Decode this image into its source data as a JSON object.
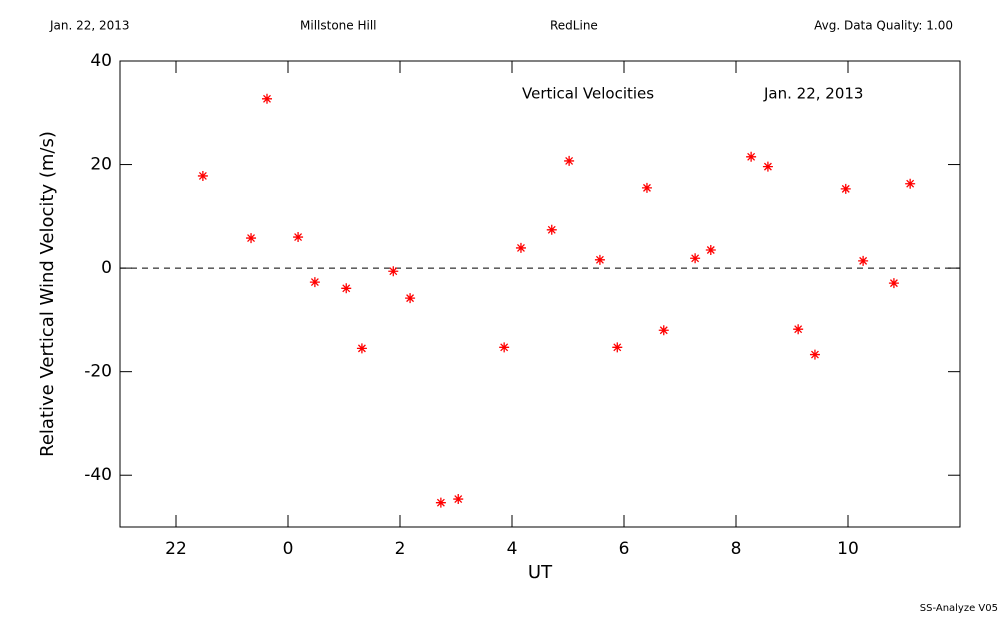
{
  "header": {
    "date": "Jan. 22, 2013",
    "site": "Millstone Hill",
    "line": "RedLine",
    "quality": "Avg. Data Quality: 1.00"
  },
  "footer": "SS-Analyze V05",
  "chart_data": {
    "type": "scatter",
    "annotations": [
      "Vertical Velocities",
      "Jan. 22, 2013"
    ],
    "xlabel": "UT",
    "ylabel": "Relative Vertical Wind Velocity (m/s)",
    "xlim": [
      -3,
      12
    ],
    "xticks": [
      {
        "value": -2,
        "label": "22"
      },
      0,
      2,
      4,
      6,
      8,
      10
    ],
    "ylim": [
      -50,
      40
    ],
    "yticks": [
      -40,
      -20,
      0,
      20,
      40
    ],
    "hline": 0,
    "color": "#ff0000",
    "x": [
      -1.52,
      -0.66,
      -0.375,
      0.18,
      0.48,
      1.04,
      1.32,
      1.88,
      2.18,
      2.73,
      3.04,
      3.86,
      4.16,
      4.71,
      5.02,
      5.57,
      5.88,
      6.41,
      6.71,
      7.27,
      7.55,
      8.27,
      8.57,
      9.11,
      9.41,
      9.96,
      10.27,
      10.82,
      11.11
    ],
    "values": [
      17.8,
      5.8,
      32.7,
      6.0,
      -2.7,
      -3.9,
      -15.5,
      -0.6,
      -5.8,
      -45.3,
      -44.6,
      -15.3,
      3.9,
      7.4,
      20.7,
      1.6,
      -15.3,
      15.5,
      -12.0,
      1.9,
      3.5,
      21.5,
      19.6,
      -11.8,
      -16.7,
      15.3,
      1.4,
      -2.9,
      16.3
    ]
  }
}
